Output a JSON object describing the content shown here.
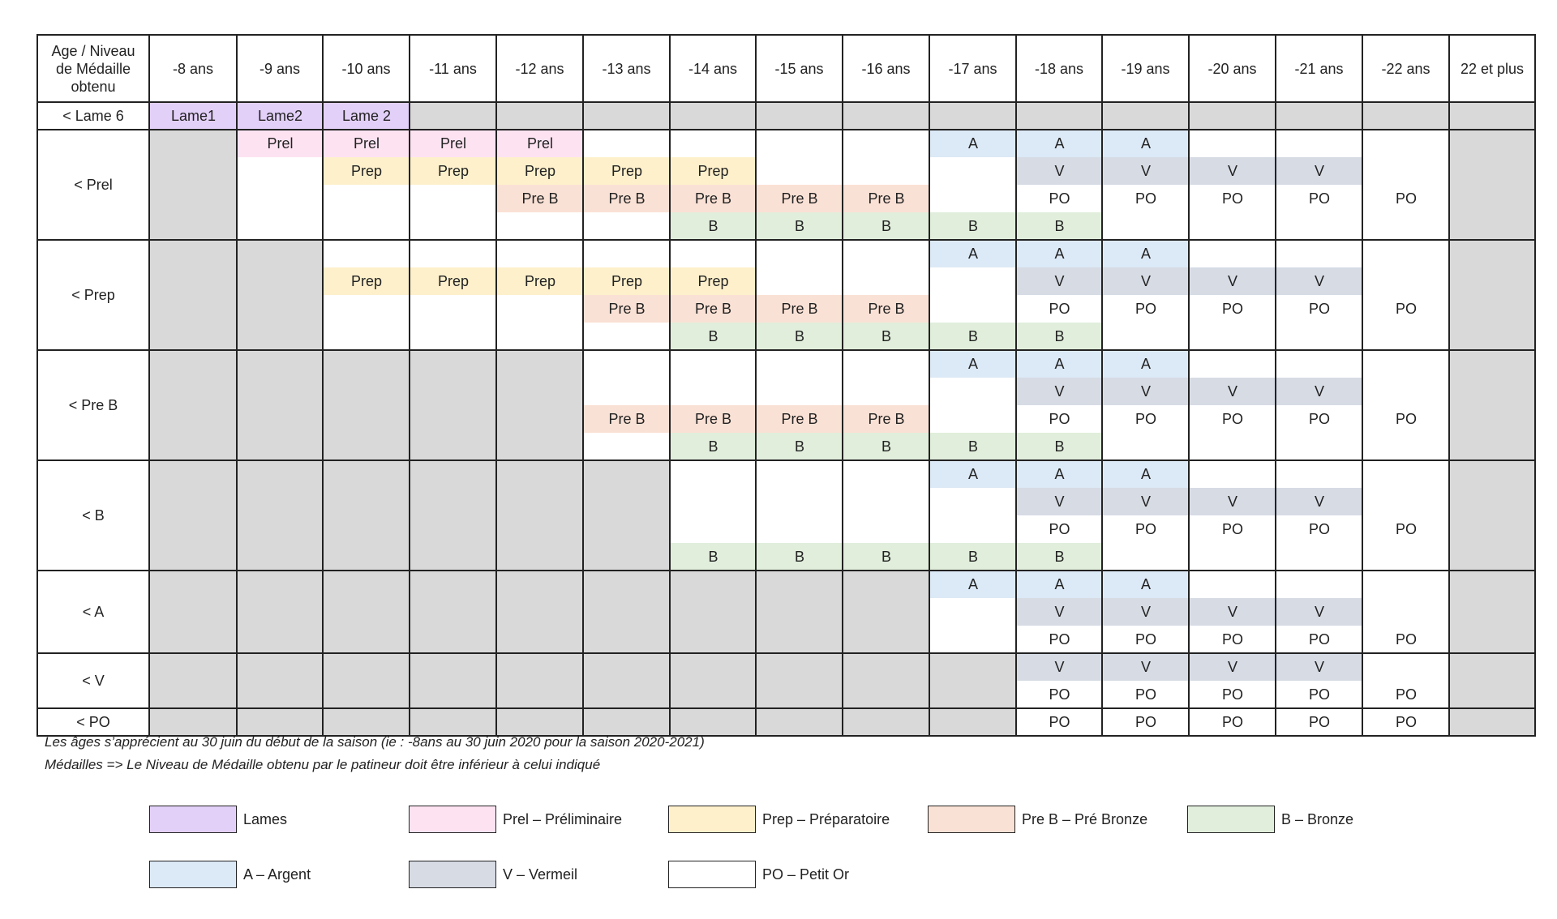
{
  "colors": {
    "L": "#e3d0f9",
    "P": "#fde3f2",
    "R": "#fdf0cb",
    "PB": "#fae1d5",
    "B": "#e0eedb",
    "A": "#dce9f6",
    "V": "#d6dbe4",
    "O": "#ffffff",
    "gray": "#d9d9d9",
    "line": "#222222"
  },
  "header": {
    "corner": "Age / Niveau\nde Médaille\nobtenu",
    "ages": [
      "-8 ans",
      "-9 ans",
      "-10 ans",
      "-11 ans",
      "-12 ans",
      "-13 ans",
      "-14 ans",
      "-15 ans",
      "-16 ans",
      "-17 ans",
      "-18 ans",
      "-19 ans",
      "-20 ans",
      "-21 ans",
      "-22 ans",
      "22 et plus"
    ]
  },
  "rows": [
    {
      "label": "< Lame 6",
      "lines": 1,
      "gray": [
        3,
        4,
        5,
        6,
        7,
        8,
        9,
        10,
        11,
        12,
        13,
        14,
        15
      ],
      "cells": [
        {
          "col": 0,
          "line": 0,
          "text": "Lame1",
          "c": "L"
        },
        {
          "col": 1,
          "line": 0,
          "text": "Lame2",
          "c": "L"
        },
        {
          "col": 2,
          "line": 0,
          "text": "Lame 2",
          "c": "L"
        }
      ]
    },
    {
      "label": "< Prel",
      "lines": 4,
      "gray": [
        0,
        15
      ],
      "cells": [
        {
          "col": 1,
          "line": 0,
          "text": "Prel",
          "c": "P"
        },
        {
          "col": 2,
          "line": 0,
          "text": "Prel",
          "c": "P"
        },
        {
          "col": 3,
          "line": 0,
          "text": "Prel",
          "c": "P"
        },
        {
          "col": 4,
          "line": 0,
          "text": "Prel",
          "c": "P"
        },
        {
          "col": 9,
          "line": 0,
          "text": "A",
          "c": "A"
        },
        {
          "col": 10,
          "line": 0,
          "text": "A",
          "c": "A"
        },
        {
          "col": 11,
          "line": 0,
          "text": "A",
          "c": "A"
        },
        {
          "col": 2,
          "line": 1,
          "text": "Prep",
          "c": "R"
        },
        {
          "col": 3,
          "line": 1,
          "text": "Prep",
          "c": "R"
        },
        {
          "col": 4,
          "line": 1,
          "text": "Prep",
          "c": "R"
        },
        {
          "col": 5,
          "line": 1,
          "text": "Prep",
          "c": "R"
        },
        {
          "col": 6,
          "line": 1,
          "text": "Prep",
          "c": "R"
        },
        {
          "col": 10,
          "line": 1,
          "text": "V",
          "c": "V"
        },
        {
          "col": 11,
          "line": 1,
          "text": "V",
          "c": "V"
        },
        {
          "col": 12,
          "line": 1,
          "text": "V",
          "c": "V"
        },
        {
          "col": 13,
          "line": 1,
          "text": "V",
          "c": "V"
        },
        {
          "col": 4,
          "line": 2,
          "text": "Pre B",
          "c": "PB"
        },
        {
          "col": 5,
          "line": 2,
          "text": "Pre B",
          "c": "PB"
        },
        {
          "col": 6,
          "line": 2,
          "text": "Pre B",
          "c": "PB"
        },
        {
          "col": 7,
          "line": 2,
          "text": "Pre B",
          "c": "PB"
        },
        {
          "col": 8,
          "line": 2,
          "text": "Pre B",
          "c": "PB"
        },
        {
          "col": 10,
          "line": 2,
          "text": "PO",
          "c": "O"
        },
        {
          "col": 11,
          "line": 2,
          "text": "PO",
          "c": "O"
        },
        {
          "col": 12,
          "line": 2,
          "text": "PO",
          "c": "O"
        },
        {
          "col": 13,
          "line": 2,
          "text": "PO",
          "c": "O"
        },
        {
          "col": 14,
          "line": 2,
          "text": "PO",
          "c": "O"
        },
        {
          "col": 6,
          "line": 3,
          "text": "B",
          "c": "B"
        },
        {
          "col": 7,
          "line": 3,
          "text": "B",
          "c": "B"
        },
        {
          "col": 8,
          "line": 3,
          "text": "B",
          "c": "B"
        },
        {
          "col": 9,
          "line": 3,
          "text": "B",
          "c": "B"
        },
        {
          "col": 10,
          "line": 3,
          "text": "B",
          "c": "B"
        }
      ]
    },
    {
      "label": "< Prep",
      "lines": 4,
      "gray": [
        0,
        1,
        15
      ],
      "cells": [
        {
          "col": 9,
          "line": 0,
          "text": "A",
          "c": "A"
        },
        {
          "col": 10,
          "line": 0,
          "text": "A",
          "c": "A"
        },
        {
          "col": 11,
          "line": 0,
          "text": "A",
          "c": "A"
        },
        {
          "col": 2,
          "line": 1,
          "text": "Prep",
          "c": "R"
        },
        {
          "col": 3,
          "line": 1,
          "text": "Prep",
          "c": "R"
        },
        {
          "col": 4,
          "line": 1,
          "text": "Prep",
          "c": "R"
        },
        {
          "col": 5,
          "line": 1,
          "text": "Prep",
          "c": "R"
        },
        {
          "col": 6,
          "line": 1,
          "text": "Prep",
          "c": "R"
        },
        {
          "col": 10,
          "line": 1,
          "text": "V",
          "c": "V"
        },
        {
          "col": 11,
          "line": 1,
          "text": "V",
          "c": "V"
        },
        {
          "col": 12,
          "line": 1,
          "text": "V",
          "c": "V"
        },
        {
          "col": 13,
          "line": 1,
          "text": "V",
          "c": "V"
        },
        {
          "col": 5,
          "line": 2,
          "text": "Pre B",
          "c": "PB"
        },
        {
          "col": 6,
          "line": 2,
          "text": "Pre B",
          "c": "PB"
        },
        {
          "col": 7,
          "line": 2,
          "text": "Pre B",
          "c": "PB"
        },
        {
          "col": 8,
          "line": 2,
          "text": "Pre B",
          "c": "PB"
        },
        {
          "col": 10,
          "line": 2,
          "text": "PO",
          "c": "O"
        },
        {
          "col": 11,
          "line": 2,
          "text": "PO",
          "c": "O"
        },
        {
          "col": 12,
          "line": 2,
          "text": "PO",
          "c": "O"
        },
        {
          "col": 13,
          "line": 2,
          "text": "PO",
          "c": "O"
        },
        {
          "col": 14,
          "line": 2,
          "text": "PO",
          "c": "O"
        },
        {
          "col": 6,
          "line": 3,
          "text": "B",
          "c": "B"
        },
        {
          "col": 7,
          "line": 3,
          "text": "B",
          "c": "B"
        },
        {
          "col": 8,
          "line": 3,
          "text": "B",
          "c": "B"
        },
        {
          "col": 9,
          "line": 3,
          "text": "B",
          "c": "B"
        },
        {
          "col": 10,
          "line": 3,
          "text": "B",
          "c": "B"
        }
      ]
    },
    {
      "label": "< Pre B",
      "lines": 4,
      "gray": [
        0,
        1,
        2,
        3,
        4,
        15
      ],
      "cells": [
        {
          "col": 9,
          "line": 0,
          "text": "A",
          "c": "A"
        },
        {
          "col": 10,
          "line": 0,
          "text": "A",
          "c": "A"
        },
        {
          "col": 11,
          "line": 0,
          "text": "A",
          "c": "A"
        },
        {
          "col": 10,
          "line": 1,
          "text": "V",
          "c": "V"
        },
        {
          "col": 11,
          "line": 1,
          "text": "V",
          "c": "V"
        },
        {
          "col": 12,
          "line": 1,
          "text": "V",
          "c": "V"
        },
        {
          "col": 13,
          "line": 1,
          "text": "V",
          "c": "V"
        },
        {
          "col": 5,
          "line": 2,
          "text": "Pre B",
          "c": "PB"
        },
        {
          "col": 6,
          "line": 2,
          "text": "Pre B",
          "c": "PB"
        },
        {
          "col": 7,
          "line": 2,
          "text": "Pre B",
          "c": "PB"
        },
        {
          "col": 8,
          "line": 2,
          "text": "Pre B",
          "c": "PB"
        },
        {
          "col": 10,
          "line": 2,
          "text": "PO",
          "c": "O"
        },
        {
          "col": 11,
          "line": 2,
          "text": "PO",
          "c": "O"
        },
        {
          "col": 12,
          "line": 2,
          "text": "PO",
          "c": "O"
        },
        {
          "col": 13,
          "line": 2,
          "text": "PO",
          "c": "O"
        },
        {
          "col": 14,
          "line": 2,
          "text": "PO",
          "c": "O"
        },
        {
          "col": 6,
          "line": 3,
          "text": "B",
          "c": "B"
        },
        {
          "col": 7,
          "line": 3,
          "text": "B",
          "c": "B"
        },
        {
          "col": 8,
          "line": 3,
          "text": "B",
          "c": "B"
        },
        {
          "col": 9,
          "line": 3,
          "text": "B",
          "c": "B"
        },
        {
          "col": 10,
          "line": 3,
          "text": "B",
          "c": "B"
        }
      ]
    },
    {
      "label": "< B",
      "lines": 4,
      "gray": [
        0,
        1,
        2,
        3,
        4,
        5,
        15
      ],
      "cells": [
        {
          "col": 9,
          "line": 0,
          "text": "A",
          "c": "A"
        },
        {
          "col": 10,
          "line": 0,
          "text": "A",
          "c": "A"
        },
        {
          "col": 11,
          "line": 0,
          "text": "A",
          "c": "A"
        },
        {
          "col": 10,
          "line": 1,
          "text": "V",
          "c": "V"
        },
        {
          "col": 11,
          "line": 1,
          "text": "V",
          "c": "V"
        },
        {
          "col": 12,
          "line": 1,
          "text": "V",
          "c": "V"
        },
        {
          "col": 13,
          "line": 1,
          "text": "V",
          "c": "V"
        },
        {
          "col": 10,
          "line": 2,
          "text": "PO",
          "c": "O"
        },
        {
          "col": 11,
          "line": 2,
          "text": "PO",
          "c": "O"
        },
        {
          "col": 12,
          "line": 2,
          "text": "PO",
          "c": "O"
        },
        {
          "col": 13,
          "line": 2,
          "text": "PO",
          "c": "O"
        },
        {
          "col": 14,
          "line": 2,
          "text": "PO",
          "c": "O"
        },
        {
          "col": 6,
          "line": 3,
          "text": "B",
          "c": "B"
        },
        {
          "col": 7,
          "line": 3,
          "text": "B",
          "c": "B"
        },
        {
          "col": 8,
          "line": 3,
          "text": "B",
          "c": "B"
        },
        {
          "col": 9,
          "line": 3,
          "text": "B",
          "c": "B"
        },
        {
          "col": 10,
          "line": 3,
          "text": "B",
          "c": "B"
        }
      ]
    },
    {
      "label": "< A",
      "lines": 3,
      "gray": [
        0,
        1,
        2,
        3,
        4,
        5,
        6,
        7,
        8,
        15
      ],
      "cells": [
        {
          "col": 9,
          "line": 0,
          "text": "A",
          "c": "A"
        },
        {
          "col": 10,
          "line": 0,
          "text": "A",
          "c": "A"
        },
        {
          "col": 11,
          "line": 0,
          "text": "A",
          "c": "A"
        },
        {
          "col": 10,
          "line": 1,
          "text": "V",
          "c": "V"
        },
        {
          "col": 11,
          "line": 1,
          "text": "V",
          "c": "V"
        },
        {
          "col": 12,
          "line": 1,
          "text": "V",
          "c": "V"
        },
        {
          "col": 13,
          "line": 1,
          "text": "V",
          "c": "V"
        },
        {
          "col": 10,
          "line": 2,
          "text": "PO",
          "c": "O"
        },
        {
          "col": 11,
          "line": 2,
          "text": "PO",
          "c": "O"
        },
        {
          "col": 12,
          "line": 2,
          "text": "PO",
          "c": "O"
        },
        {
          "col": 13,
          "line": 2,
          "text": "PO",
          "c": "O"
        },
        {
          "col": 14,
          "line": 2,
          "text": "PO",
          "c": "O"
        }
      ]
    },
    {
      "label": "< V",
      "lines": 2,
      "gray": [
        0,
        1,
        2,
        3,
        4,
        5,
        6,
        7,
        8,
        9,
        15
      ],
      "cells": [
        {
          "col": 10,
          "line": 0,
          "text": "V",
          "c": "V"
        },
        {
          "col": 11,
          "line": 0,
          "text": "V",
          "c": "V"
        },
        {
          "col": 12,
          "line": 0,
          "text": "V",
          "c": "V"
        },
        {
          "col": 13,
          "line": 0,
          "text": "V",
          "c": "V"
        },
        {
          "col": 10,
          "line": 1,
          "text": "PO",
          "c": "O"
        },
        {
          "col": 11,
          "line": 1,
          "text": "PO",
          "c": "O"
        },
        {
          "col": 12,
          "line": 1,
          "text": "PO",
          "c": "O"
        },
        {
          "col": 13,
          "line": 1,
          "text": "PO",
          "c": "O"
        },
        {
          "col": 14,
          "line": 1,
          "text": "PO",
          "c": "O"
        }
      ]
    },
    {
      "label": "< PO",
      "lines": 1,
      "gray": [
        0,
        1,
        2,
        3,
        4,
        5,
        6,
        7,
        8,
        9,
        15
      ],
      "cells": [
        {
          "col": 10,
          "line": 0,
          "text": "PO",
          "c": "O"
        },
        {
          "col": 11,
          "line": 0,
          "text": "PO",
          "c": "O"
        },
        {
          "col": 12,
          "line": 0,
          "text": "PO",
          "c": "O"
        },
        {
          "col": 13,
          "line": 0,
          "text": "PO",
          "c": "O"
        },
        {
          "col": 14,
          "line": 0,
          "text": "PO",
          "c": "O"
        }
      ]
    }
  ],
  "notes": [
    "Les âges s’apprécient au 30 juin du début de la saison (ie : -8ans au 30 juin 2020 pour la saison 2020-2021)",
    "Médailles => Le Niveau de Médaille obtenu par le patineur doit être inférieur à celui indiqué"
  ],
  "legend": [
    {
      "c": "L",
      "label": "Lames"
    },
    {
      "c": "P",
      "label": "Prel – Préliminaire"
    },
    {
      "c": "R",
      "label": "Prep – Préparatoire"
    },
    {
      "c": "PB",
      "label": "Pre B – Pré Bronze"
    },
    {
      "c": "B",
      "label": "B – Bronze"
    },
    {
      "c": "A",
      "label": "A – Argent"
    },
    {
      "c": "V",
      "label": "V – Vermeil"
    },
    {
      "c": "O",
      "label": "PO – Petit Or"
    }
  ]
}
